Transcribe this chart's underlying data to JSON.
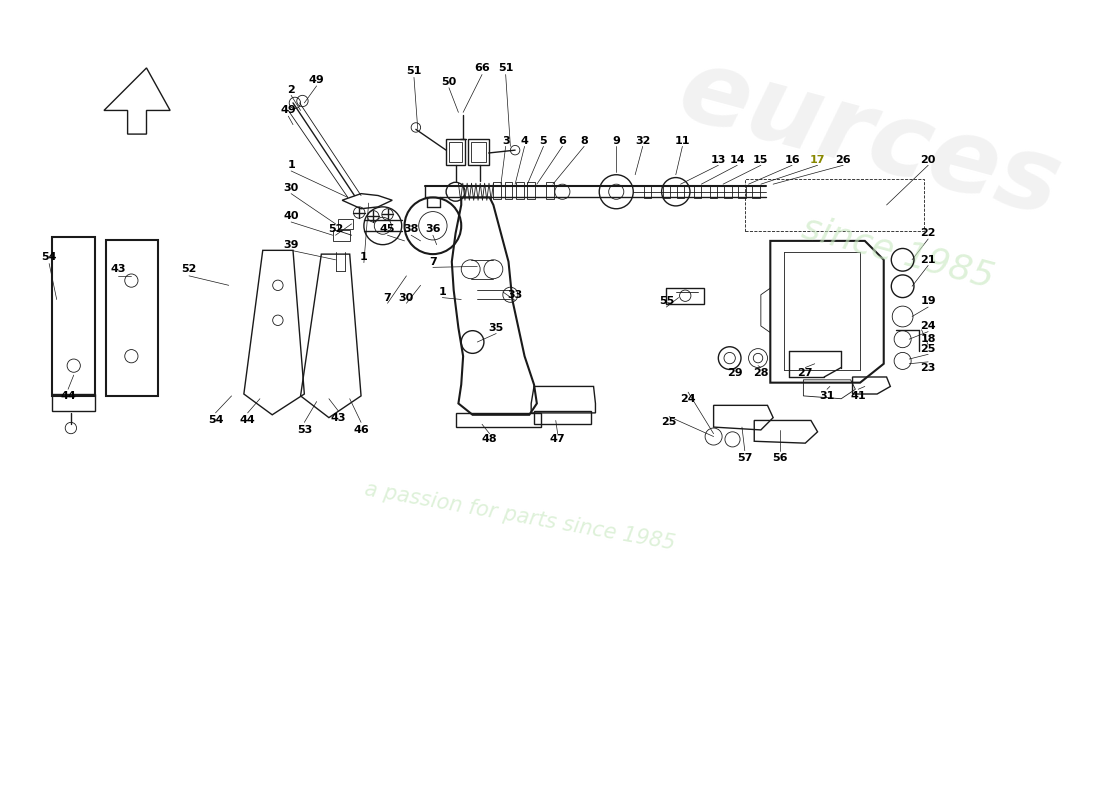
{
  "bg_color": "#ffffff",
  "line_color": "#1a1a1a",
  "label_color": "#000000",
  "lw_thin": 0.6,
  "lw_med": 1.0,
  "lw_thick": 1.5,
  "label_fontsize": 8.0,
  "fig_w": 11.0,
  "fig_h": 8.0,
  "dpi": 100,
  "xlim": [
    0,
    11
  ],
  "ylim": [
    0,
    8
  ]
}
